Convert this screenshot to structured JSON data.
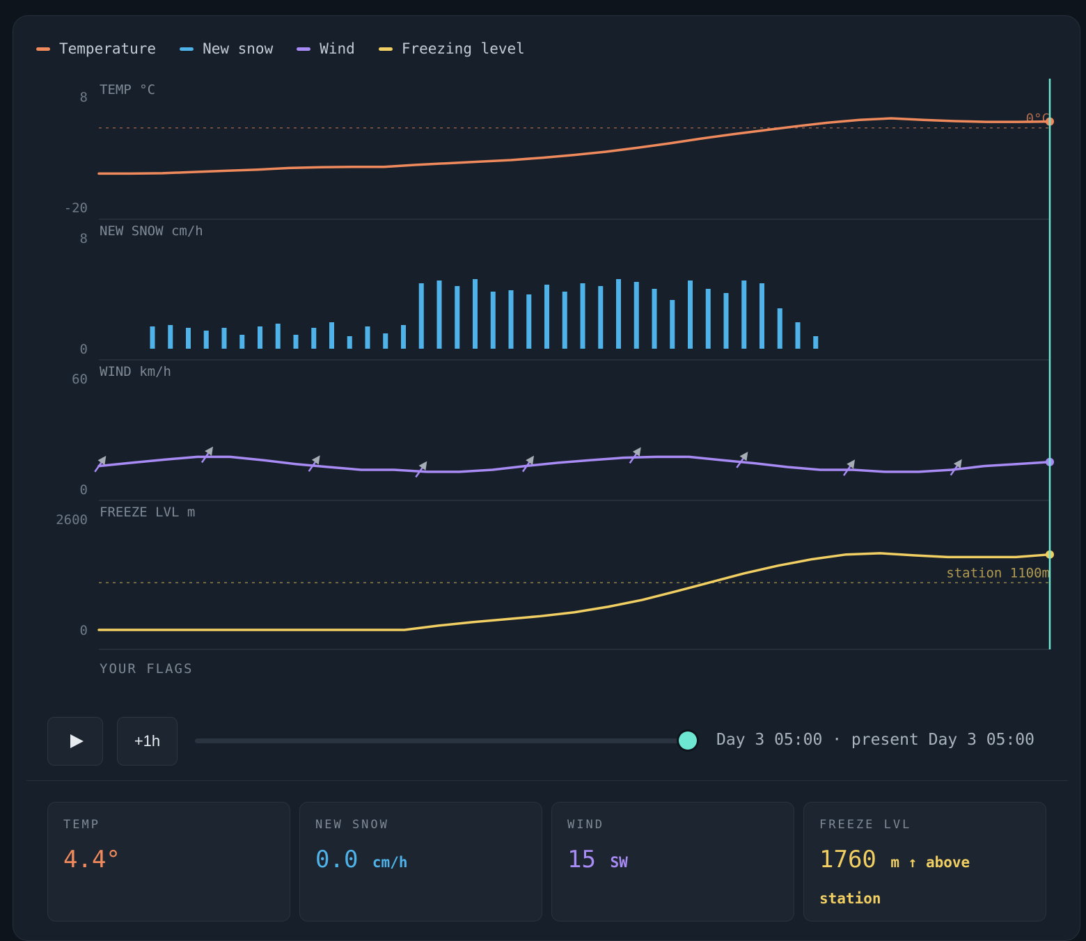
{
  "legend": [
    {
      "label": "Temperature",
      "color": "#f08a5d"
    },
    {
      "label": "New snow",
      "color": "#4fb3ea"
    },
    {
      "label": "Wind",
      "color": "#a98bf5"
    },
    {
      "label": "Freezing level",
      "color": "#f2cf63"
    }
  ],
  "chart_data": [
    {
      "type": "line",
      "title": "TEMP °C",
      "ylim": [
        -20,
        8
      ],
      "yticks": [
        "8",
        "-20"
      ],
      "reference": {
        "value": 0,
        "label": "0°C"
      },
      "values": [
        -11.5,
        -11.5,
        -11.4,
        -11.1,
        -10.8,
        -10.5,
        -10.1,
        -9.9,
        -9.8,
        -9.8,
        -9.3,
        -8.9,
        -8.5,
        -8.1,
        -7.5,
        -6.8,
        -6.0,
        -5.0,
        -3.9,
        -2.7,
        -1.6,
        -0.6,
        0.4,
        1.3,
        2.0,
        2.4,
        2.0,
        1.7,
        1.5,
        1.5,
        1.6
      ],
      "series_name": "Temperature",
      "color": "#f08a5d"
    },
    {
      "type": "bar",
      "title": "NEW SNOW cm/h",
      "ylim": [
        0,
        8
      ],
      "yticks": [
        "8",
        "0"
      ],
      "values": [
        1.6,
        1.7,
        1.5,
        1.3,
        1.5,
        1.0,
        1.6,
        1.8,
        1.0,
        1.5,
        1.9,
        0.9,
        1.6,
        1.1,
        1.7,
        4.7,
        4.9,
        4.5,
        5.0,
        4.1,
        4.2,
        3.9,
        4.6,
        4.1,
        4.7,
        4.5,
        5.0,
        4.8,
        4.3,
        3.5,
        4.9,
        4.3,
        4.0,
        4.9,
        4.7,
        2.9,
        1.9,
        0.9
      ],
      "series_name": "New snow",
      "color": "#4fb3ea"
    },
    {
      "type": "line",
      "title": "WIND km/h",
      "ylim": [
        0,
        60
      ],
      "yticks": [
        "60",
        "0"
      ],
      "values": [
        12.5,
        14.3,
        16,
        17.5,
        17.5,
        15.7,
        13.6,
        12,
        10.5,
        10.5,
        9.4,
        9.4,
        10.5,
        12.5,
        14.3,
        15.7,
        17,
        17.5,
        17.5,
        15.7,
        14,
        12,
        10.5,
        10.5,
        9.4,
        9.4,
        10.5,
        12.5,
        13.6,
        14.7
      ],
      "arrows": 9,
      "direction": "SW",
      "series_name": "Wind",
      "color": "#a98bf5"
    },
    {
      "type": "line",
      "title": "FREEZE LVL m",
      "ylim": [
        0,
        2600
      ],
      "yticks": [
        "2600",
        "0"
      ],
      "reference": {
        "value": 1100,
        "label": "station 1100m"
      },
      "values": [
        0,
        0,
        0,
        0,
        0,
        0,
        0,
        0,
        0,
        0,
        100,
        180,
        250,
        320,
        410,
        540,
        700,
        900,
        1110,
        1320,
        1500,
        1650,
        1760,
        1790,
        1740,
        1700,
        1700,
        1700,
        1760
      ],
      "series_name": "Freezing level",
      "color": "#f2cf63"
    }
  ],
  "flags": {
    "label": "YOUR FLAGS"
  },
  "controls": {
    "step_label": "+1h",
    "slider_fraction": 1.0,
    "time": "Day 3 05:00",
    "separator": "·",
    "present": "present Day 3 05:00"
  },
  "cards": [
    {
      "label": "TEMP",
      "value": "4.4°",
      "unit": "",
      "color": "#f08a5d"
    },
    {
      "label": "NEW SNOW",
      "value": "0.0",
      "unit": "cm/h",
      "color": "#4fb3ea"
    },
    {
      "label": "WIND",
      "value": "15",
      "unit": "SW",
      "color": "#a98bf5"
    },
    {
      "label": "FREEZE LVL",
      "value": "1760",
      "unit": "m ↑ above station",
      "color": "#f2cf63"
    }
  ],
  "cursor_color": "#6ee7d2"
}
